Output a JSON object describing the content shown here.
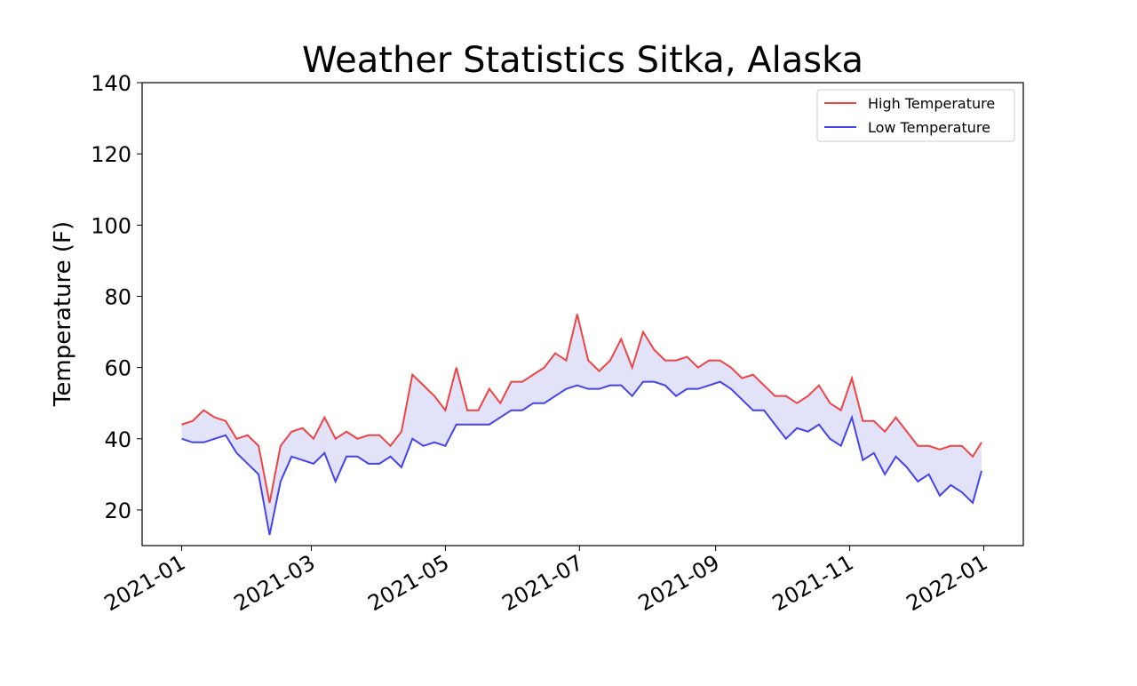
{
  "chart_data": {
    "type": "line",
    "title": "Weather Statistics Sitka, Alaska",
    "y_label": "Temperature (F)",
    "x": [
      0,
      5,
      10,
      15,
      20,
      25,
      30,
      35,
      40,
      45,
      50,
      55,
      60,
      65,
      70,
      75,
      80,
      85,
      90,
      95,
      100,
      105,
      110,
      115,
      120,
      125,
      130,
      135,
      140,
      145,
      150,
      155,
      160,
      165,
      170,
      175,
      180,
      185,
      190,
      195,
      200,
      205,
      210,
      215,
      220,
      225,
      230,
      235,
      240,
      245,
      250,
      255,
      260,
      265,
      270,
      275,
      280,
      285,
      290,
      295,
      300,
      305,
      310,
      315,
      320,
      325,
      330,
      335,
      340,
      345,
      350,
      355,
      360,
      364
    ],
    "series": [
      {
        "name": "High Temperature",
        "color": "#ee4444",
        "values": [
          44,
          45,
          48,
          46,
          45,
          40,
          41,
          38,
          22,
          38,
          42,
          43,
          40,
          46,
          40,
          42,
          40,
          41,
          41,
          38,
          42,
          58,
          55,
          52,
          48,
          60,
          48,
          48,
          54,
          50,
          56,
          56,
          58,
          60,
          64,
          62,
          75,
          62,
          59,
          62,
          68,
          60,
          70,
          65,
          62,
          62,
          63,
          60,
          62,
          62,
          60,
          57,
          58,
          55,
          52,
          52,
          50,
          52,
          55,
          50,
          48,
          57,
          45,
          45,
          42,
          46,
          42,
          38,
          38,
          37,
          38,
          38,
          35,
          39
        ]
      },
      {
        "name": "Low Temperature",
        "color": "#4444ee",
        "values": [
          40,
          39,
          39,
          40,
          41,
          36,
          33,
          30,
          13,
          28,
          35,
          34,
          33,
          36,
          28,
          35,
          35,
          33,
          33,
          35,
          32,
          40,
          38,
          39,
          38,
          44,
          44,
          44,
          44,
          46,
          48,
          48,
          50,
          50,
          52,
          54,
          55,
          54,
          54,
          55,
          55,
          52,
          56,
          56,
          55,
          52,
          54,
          54,
          55,
          56,
          54,
          51,
          48,
          48,
          44,
          40,
          43,
          42,
          44,
          40,
          38,
          46,
          34,
          36,
          30,
          35,
          32,
          28,
          30,
          24,
          27,
          25,
          22,
          31
        ]
      }
    ],
    "fill_color": "#e2e2f8",
    "xlim": [
      -18,
      383
    ],
    "xticks": [
      {
        "value": 0,
        "label": "2021-01"
      },
      {
        "value": 59,
        "label": "2021-03"
      },
      {
        "value": 120,
        "label": "2021-05"
      },
      {
        "value": 181,
        "label": "2021-07"
      },
      {
        "value": 243,
        "label": "2021-09"
      },
      {
        "value": 304,
        "label": "2021-11"
      },
      {
        "value": 365,
        "label": "2022-01"
      }
    ],
    "ylim": [
      10,
      140
    ],
    "yticks": [
      20,
      40,
      60,
      80,
      100,
      120,
      140
    ],
    "legend": "upper right"
  }
}
